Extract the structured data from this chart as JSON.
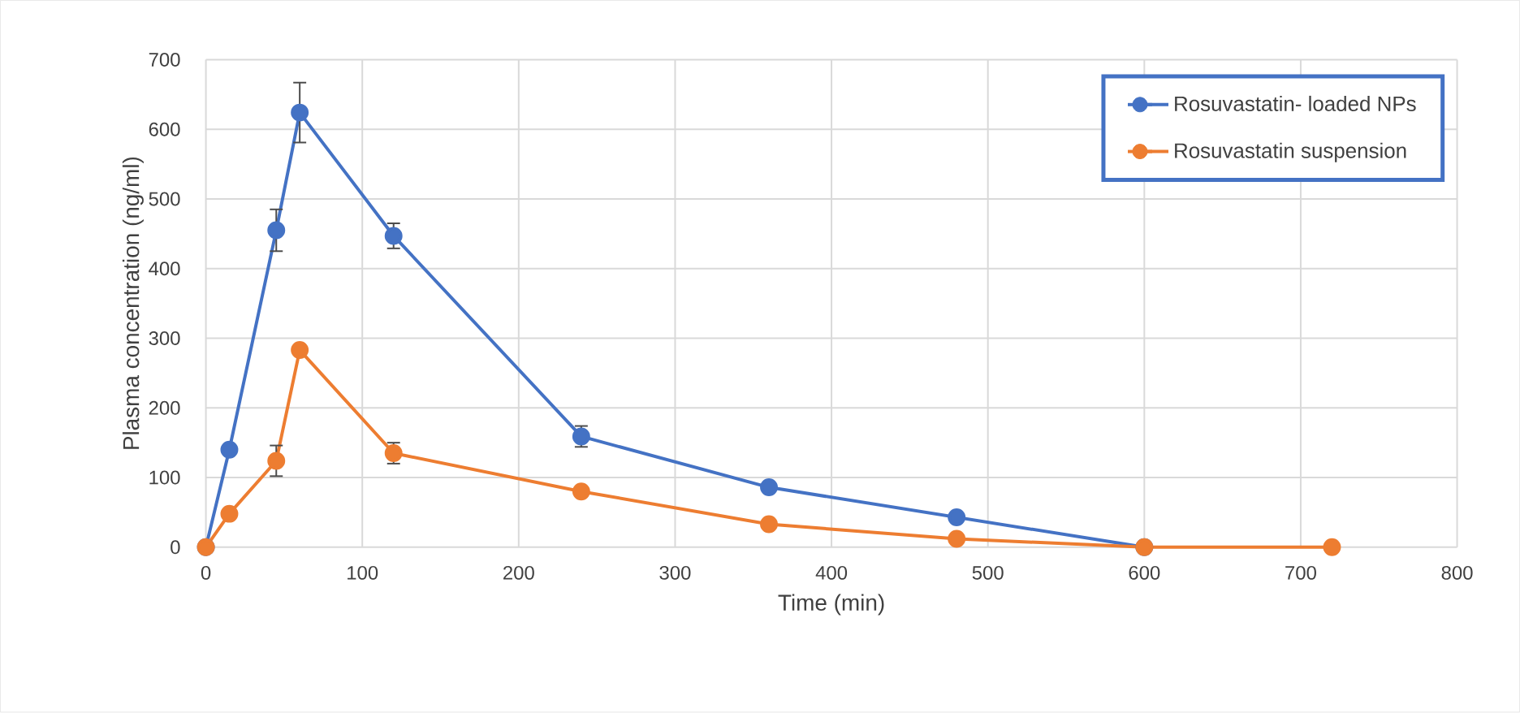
{
  "chart_data": {
    "type": "line",
    "xlabel": "Time (min)",
    "ylabel": "Plasma concentration (ng/ml)",
    "x": [
      0,
      15,
      45,
      60,
      120,
      240,
      360,
      480,
      600,
      720
    ],
    "series": [
      {
        "name": "Rosuvastatin- loaded NPs",
        "color": "#4472c4",
        "values": [
          0,
          140,
          455,
          624,
          447,
          159,
          86,
          43,
          0,
          null
        ],
        "errors": [
          null,
          null,
          30,
          43,
          18,
          15,
          null,
          null,
          null,
          null
        ]
      },
      {
        "name": "Rosuvastatin suspension",
        "color": "#ed7d31",
        "values": [
          0,
          48,
          124,
          283,
          135,
          80,
          33,
          12,
          0,
          0
        ],
        "errors": [
          null,
          null,
          22,
          null,
          15,
          null,
          null,
          null,
          null,
          null
        ]
      }
    ],
    "xlim": [
      0,
      800
    ],
    "ylim": [
      0,
      700
    ],
    "xticks": [
      0,
      100,
      200,
      300,
      400,
      500,
      600,
      700,
      800
    ],
    "yticks": [
      0,
      100,
      200,
      300,
      400,
      500,
      600,
      700
    ],
    "grid": true,
    "legend": "top right",
    "marker": "circle",
    "line_style": "solid"
  }
}
